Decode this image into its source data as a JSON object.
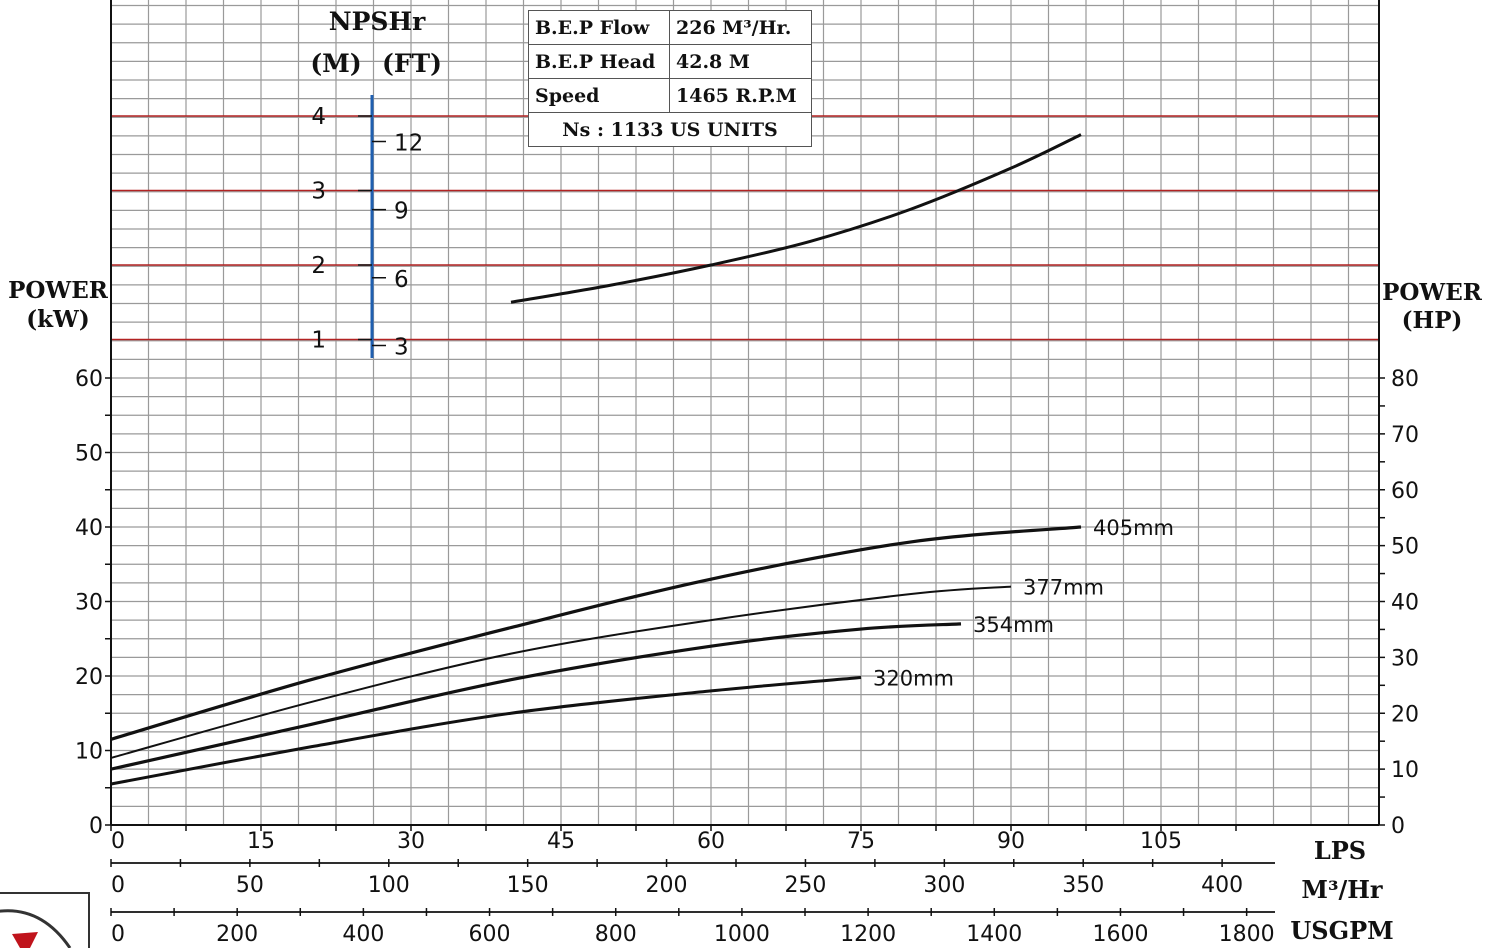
{
  "bep": {
    "flow_label": "B.E.P Flow",
    "flow_value": "226 M³/Hr.",
    "head_label": "B.E.P Head",
    "head_value": "42.8 M",
    "speed_label": "Speed",
    "speed_value": "1465 R.P.M",
    "ns_line": "Ns : 1133 US UNITS"
  },
  "axis_titles": {
    "npshr": "NPSHr",
    "npshr_m": "(M)",
    "npshr_ft": "(FT)",
    "power_kw_1": "POWER",
    "power_kw_2": "(kW)",
    "power_hp_1": "POWER",
    "power_hp_2": "(HP)",
    "lps": "LPS",
    "m3hr": "M³/Hr",
    "usgpm": "USGPM"
  },
  "colors": {
    "grid": "#9a9a9a",
    "npsh_grid": "#b22222",
    "npsh_scale": "#1f5fb0",
    "curve": "#111111"
  },
  "chart_data": [
    {
      "type": "line",
      "name": "NPSHr",
      "x_unit": "LPS",
      "xlim": [
        0,
        120
      ],
      "ylim_m": [
        0.5,
        5
      ],
      "ylim_ft": [
        3,
        12
      ],
      "ticks_m": [
        1,
        2,
        3,
        4
      ],
      "ticks_ft": [
        3,
        6,
        9,
        12
      ],
      "x": [
        40,
        50,
        60,
        70,
        80,
        90,
        97
      ],
      "y": [
        1.5,
        1.73,
        2.0,
        2.32,
        2.75,
        3.3,
        3.75
      ]
    },
    {
      "type": "line",
      "name": "Power",
      "x_unit": "LPS",
      "xlim": [
        0,
        128
      ],
      "ylim_kw": [
        0,
        60
      ],
      "ylim_hp": [
        0,
        80
      ],
      "xticks_lps": [
        0,
        15,
        30,
        45,
        60,
        75,
        90,
        105
      ],
      "xticks_m3hr": [
        0,
        50,
        100,
        150,
        200,
        250,
        300,
        350,
        400
      ],
      "xticks_usgpm": [
        0,
        200,
        400,
        600,
        800,
        1000,
        1200,
        1400,
        1600,
        1800
      ],
      "yticks_kw": [
        0,
        10,
        20,
        30,
        40,
        50,
        60
      ],
      "yticks_hp": [
        0,
        10,
        20,
        30,
        40,
        50,
        60,
        70,
        80
      ],
      "series": [
        {
          "label": "405mm",
          "x": [
            0,
            20,
            40,
            60,
            80,
            97
          ],
          "y": [
            11.5,
            19.5,
            26.5,
            33,
            38,
            40
          ]
        },
        {
          "label": "377mm",
          "x": [
            0,
            20,
            40,
            60,
            80,
            90
          ],
          "y": [
            9,
            16.5,
            23,
            27.5,
            31,
            32
          ]
        },
        {
          "label": "354mm",
          "x": [
            0,
            20,
            40,
            60,
            75,
            85
          ],
          "y": [
            7.5,
            13.5,
            19.5,
            24,
            26.3,
            27
          ]
        },
        {
          "label": "320mm",
          "x": [
            0,
            20,
            40,
            60,
            75
          ],
          "y": [
            5.5,
            10.5,
            15,
            18,
            19.8
          ]
        }
      ]
    }
  ]
}
